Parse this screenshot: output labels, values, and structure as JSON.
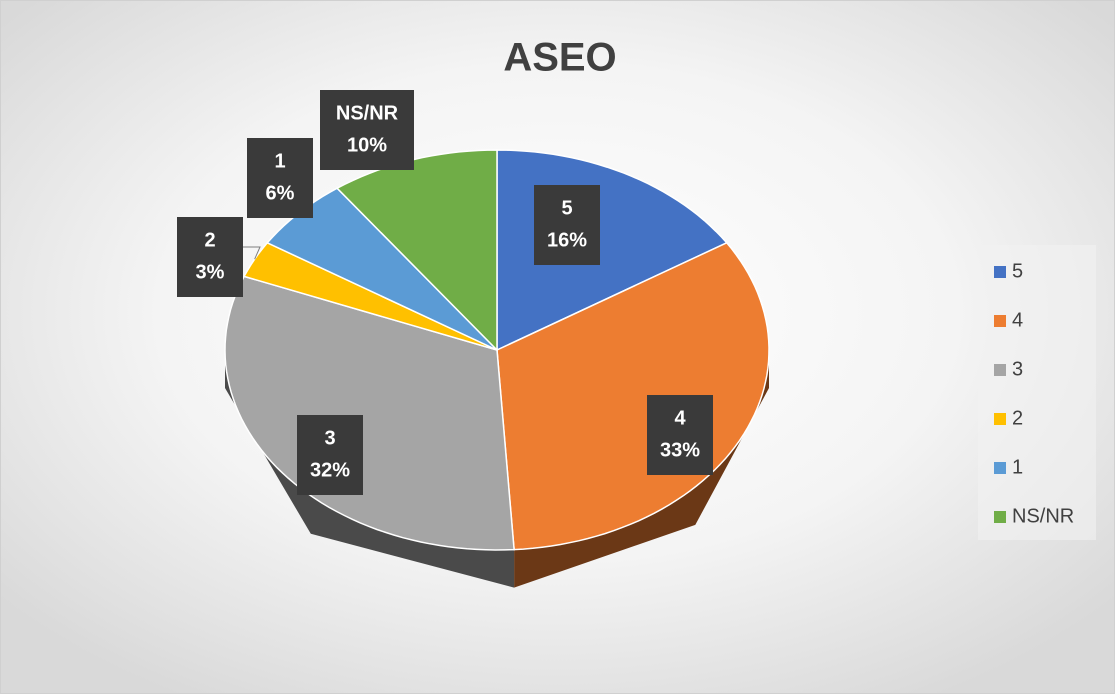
{
  "chart_data": {
    "type": "pie",
    "title": "ASEO",
    "categories": [
      "5",
      "4",
      "3",
      "2",
      "1",
      "NS/NR"
    ],
    "values": [
      16,
      33,
      32,
      3,
      6,
      10
    ],
    "value_labels": [
      "16%",
      "33%",
      "32%",
      "3%",
      "6%",
      "10%"
    ],
    "colors": [
      "#4472c4",
      "#ed7d31",
      "#a5a5a5",
      "#ffc000",
      "#5b9bd5",
      "#70ad47"
    ],
    "legend": "right"
  }
}
